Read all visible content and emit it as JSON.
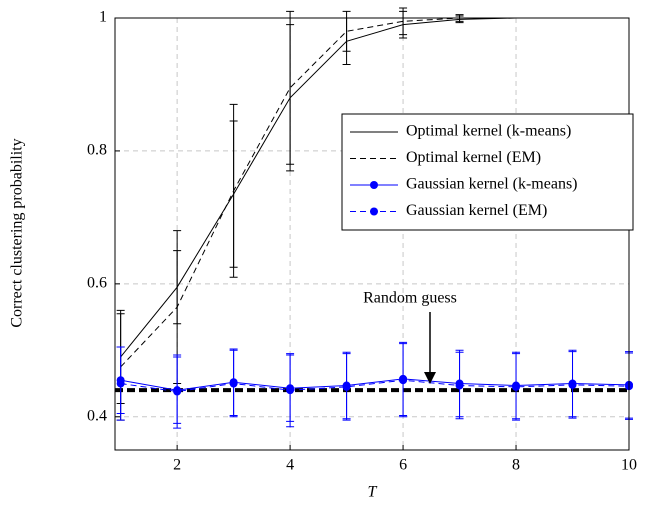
{
  "chart_data": {
    "type": "line",
    "x_label": "T",
    "y_label": "Correct clustering probability",
    "x": [
      1,
      2,
      3,
      4,
      5,
      6,
      7,
      8,
      9,
      10
    ],
    "series": [
      {
        "name": "Optimal kernel (k-means)",
        "color": "#000000",
        "dashed": false,
        "marker": false,
        "values": [
          0.49,
          0.595,
          0.735,
          0.88,
          0.965,
          0.99,
          0.998,
          1,
          1,
          1
        ],
        "errors": [
          0.07,
          0.055,
          0.11,
          0.11,
          0.035,
          0.02,
          0.005,
          0,
          0,
          0
        ]
      },
      {
        "name": "Optimal kernel (EM)",
        "color": "#000000",
        "dashed": true,
        "marker": false,
        "values": [
          0.475,
          0.565,
          0.74,
          0.895,
          0.98,
          0.995,
          1,
          1,
          1,
          1
        ],
        "errors": [
          0.08,
          0.115,
          0.13,
          0.115,
          0.03,
          0.02,
          0.005,
          0,
          0,
          0
        ]
      },
      {
        "name": "Gaussian kernel (k-means)",
        "color": "#0000ff",
        "dashed": false,
        "marker": true,
        "values": [
          0.455,
          0.44,
          0.452,
          0.443,
          0.447,
          0.457,
          0.45,
          0.447,
          0.45,
          0.448
        ],
        "errors": [
          0.05,
          0.05,
          0.05,
          0.05,
          0.05,
          0.055,
          0.05,
          0.05,
          0.05,
          0.05
        ]
      },
      {
        "name": "Gaussian kernel (EM)",
        "color": "#0000ff",
        "dashed": true,
        "marker": true,
        "values": [
          0.45,
          0.438,
          0.45,
          0.44,
          0.445,
          0.455,
          0.447,
          0.445,
          0.448,
          0.446
        ],
        "errors": [
          0.055,
          0.055,
          0.05,
          0.055,
          0.05,
          0.055,
          0.05,
          0.05,
          0.05,
          0.05
        ]
      }
    ],
    "reference": {
      "value": 0.44,
      "label": "Random guess"
    },
    "xlim": [
      0.9,
      10
    ],
    "ylim": [
      0.35,
      1
    ],
    "xticks": [
      2,
      4,
      6,
      8,
      10
    ],
    "yticks": [
      0.4,
      0.6,
      0.8,
      1
    ],
    "grid": true,
    "legend": "upper right"
  }
}
